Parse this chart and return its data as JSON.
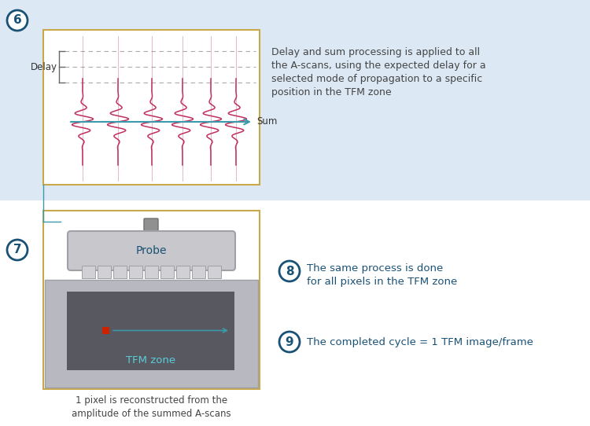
{
  "bg_color": "#dce9f5",
  "white_bg": "#ffffff",
  "panel_border_color": "#c8a84b",
  "step6_text": "Delay and sum processing is applied to all\nthe A-scans, using the expected delay for a\nselected mode of propagation to a specific\nposition in the TFM zone",
  "step8_text": "The same process is done\nfor all pixels in the TFM zone",
  "step9_text": "The completed cycle = 1 TFM image/frame",
  "caption_text": "1 pixel is reconstructed from the\namplitude of the summed A-scans",
  "delay_label": "Delay",
  "sum_label": "Sum",
  "probe_label": "Probe",
  "tfm_label": "TFM zone",
  "circle_color": "#1a5276",
  "text_color": "#1a5276",
  "red_color": "#cc2200",
  "teal_color": "#3a9aaa",
  "pink_color": "#c03060",
  "gray_light": "#c8c8cc",
  "gray_mid": "#a0a0a8",
  "gray_dark": "#707078",
  "gray_tfm_zone": "#585860",
  "gray_body": "#b8b8c0",
  "gold_border": "#c8a030"
}
